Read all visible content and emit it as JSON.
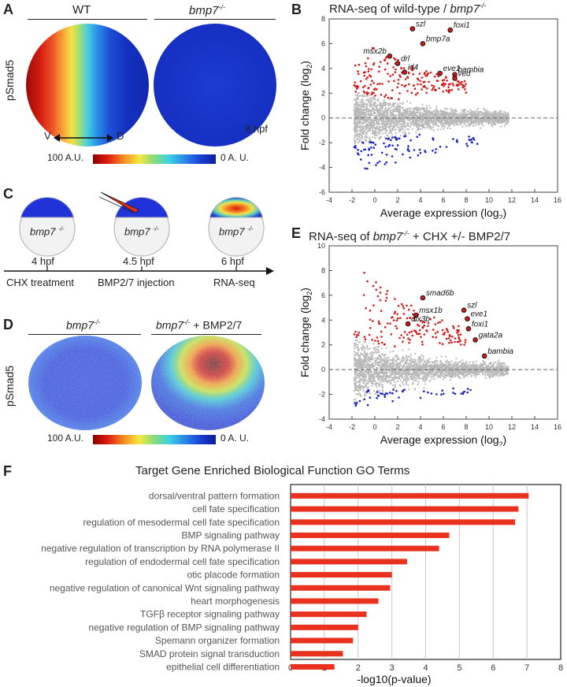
{
  "panels": {
    "a": "A",
    "b": "B",
    "c": "C",
    "d": "D",
    "e": "E",
    "f": "F"
  },
  "panel_a": {
    "wt_label": "WT",
    "mut_label": "bmp7",
    "mut_sup": "-/-",
    "ylabel": "pSmad5",
    "v": "V",
    "d": "D",
    "stage": "8 hpf",
    "scale_left": "100  A.U.",
    "scale_right": "0 A. U."
  },
  "panel_c": {
    "embryo_label": "bmp7",
    "embryo_sup": "-/-",
    "times": [
      "4 hpf",
      "4.5 hpf",
      "6 hpf"
    ],
    "steps": [
      "CHX treatment",
      "BMP2/7 injection",
      "RNA-seq"
    ]
  },
  "panel_d": {
    "left_label": "bmp7",
    "left_sup": "-/-",
    "right_label": "bmp7",
    "right_sup": "-/-",
    "right_suffix": " + BMP2/7",
    "ylabel": "pSmad5",
    "scale_left": "100  A.U.",
    "scale_right": "0 A. U."
  },
  "chart_data": [
    {
      "type": "scatter",
      "title_prefix": "RNA-seq of wild-type / ",
      "title_gene": "bmp7",
      "title_sup": "-/-",
      "xlabel": "Average expression (log",
      "xlabel_sub": "2",
      "ylabel": "Fold change (log",
      "ylabel_sub": "2",
      "xlim": [
        -4,
        16
      ],
      "ylim": [
        -6,
        8
      ],
      "xticks": [
        "-4",
        "-2",
        "0",
        "2",
        "4",
        "6",
        "8",
        "10",
        "12",
        "14",
        "16"
      ],
      "yticks": [
        "-6",
        "-4",
        "-2",
        "0",
        "2",
        "4",
        "6",
        "8"
      ],
      "labeled_genes": [
        {
          "name": "szl",
          "x": 3.3,
          "y": 7.2
        },
        {
          "name": "foxi1",
          "x": 6.6,
          "y": 7.1
        },
        {
          "name": "bmp7a",
          "x": 4.2,
          "y": 6.0
        },
        {
          "name": "msx2b",
          "x": 1.3,
          "y": 5.0
        },
        {
          "name": "drl",
          "x": 2.0,
          "y": 4.4
        },
        {
          "name": "id4",
          "x": 2.6,
          "y": 3.7
        },
        {
          "name": "eve1",
          "x": 5.7,
          "y": 3.6
        },
        {
          "name": "bambia",
          "x": 7.0,
          "y": 3.5
        },
        {
          "name": "ved",
          "x": 7.0,
          "y": 3.2
        }
      ]
    },
    {
      "type": "scatter",
      "title_prefix": "RNA-seq of ",
      "title_gene": "bmp7",
      "title_sup": "-/-",
      "title_suffix": " + CHX +/- BMP2/7",
      "xlabel": "Average expression (log",
      "xlabel_sub": "2",
      "ylabel": "Fold change (log",
      "ylabel_sub": "2",
      "xlim": [
        -4,
        16
      ],
      "ylim": [
        -4,
        10
      ],
      "xticks": [
        "-4",
        "-2",
        "0",
        "2",
        "4",
        "6",
        "8",
        "10",
        "12",
        "14",
        "16"
      ],
      "yticks": [
        "-4",
        "-2",
        "0",
        "2",
        "4",
        "6",
        "8",
        "10"
      ],
      "labeled_genes": [
        {
          "name": "smad6b",
          "x": 4.2,
          "y": 5.8
        },
        {
          "name": "szl",
          "x": 7.8,
          "y": 4.8
        },
        {
          "name": "msx1b",
          "x": 3.6,
          "y": 4.4
        },
        {
          "name": "eve1",
          "x": 8.1,
          "y": 4.1
        },
        {
          "name": "dlx3b",
          "x": 2.9,
          "y": 3.7
        },
        {
          "name": "foxi1",
          "x": 8.2,
          "y": 3.3
        },
        {
          "name": "gata2a",
          "x": 8.8,
          "y": 2.4
        },
        {
          "name": "bambia",
          "x": 9.6,
          "y": 1.1
        }
      ]
    },
    {
      "type": "bar",
      "orientation": "horizontal",
      "title": "Target Gene Enriched Biological Function GO Terms",
      "xlabel": "-log10(p-value)",
      "xlim": [
        0,
        8
      ],
      "xticks": [
        "0",
        "1",
        "2",
        "3",
        "4",
        "5",
        "6",
        "7",
        "8"
      ],
      "bar_color": "#e8311f",
      "categories": [
        "dorsal/ventral pattern formation",
        "cell fate specification",
        "regulation of mesodermal cell fate specification",
        "BMP signaling pathway",
        "negative regulation of transcription by RNA polymerase II",
        "regulation of endodermal cell fate specification",
        "otic placode formation",
        "negative regulation of canonical Wnt signaling pathway",
        "heart morphogenesis",
        "TGFβ receptor signaling pathway",
        "negative regulation of BMP signaling pathway",
        "Spemann organizer formation",
        "SMAD protein signal transduction",
        "epithelial cell differentiation"
      ],
      "values": [
        7.05,
        6.75,
        6.65,
        4.7,
        4.4,
        3.45,
        3.0,
        2.95,
        2.6,
        2.25,
        2.0,
        1.85,
        1.55,
        1.3
      ]
    }
  ]
}
